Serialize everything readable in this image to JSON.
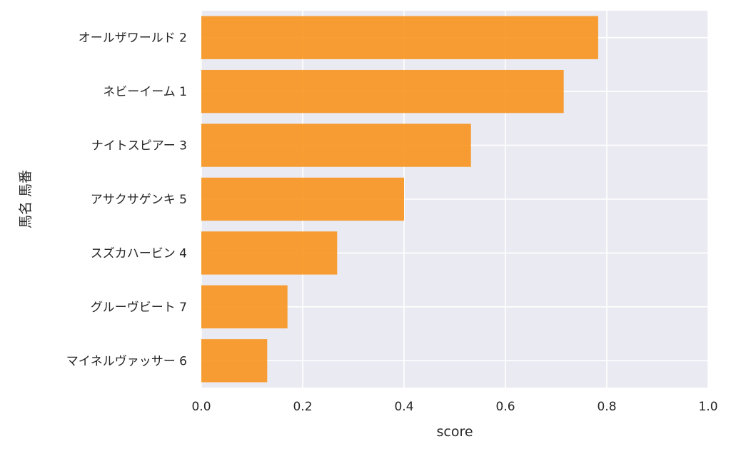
{
  "chart_data": {
    "type": "bar",
    "orientation": "horizontal",
    "categories": [
      "オールザワールド 2",
      "ネビーイーム 1",
      "ナイトスピアー 3",
      "アサクサゲンキ 5",
      "スズカハービン 4",
      "グルーヴビート 7",
      "マイネルヴァッサー 6"
    ],
    "values": [
      0.783,
      0.715,
      0.532,
      0.4,
      0.268,
      0.17,
      0.13
    ],
    "xlabel": "score",
    "ylabel": "馬名 馬番",
    "xlim": [
      0.0,
      1.0
    ],
    "xticks": [
      "0.0",
      "0.2",
      "0.4",
      "0.6",
      "0.8",
      "1.0"
    ],
    "grid": true,
    "colors": {
      "bar": "#f7941d",
      "background": "#eaeaf2",
      "grid": "#ffffff"
    }
  }
}
